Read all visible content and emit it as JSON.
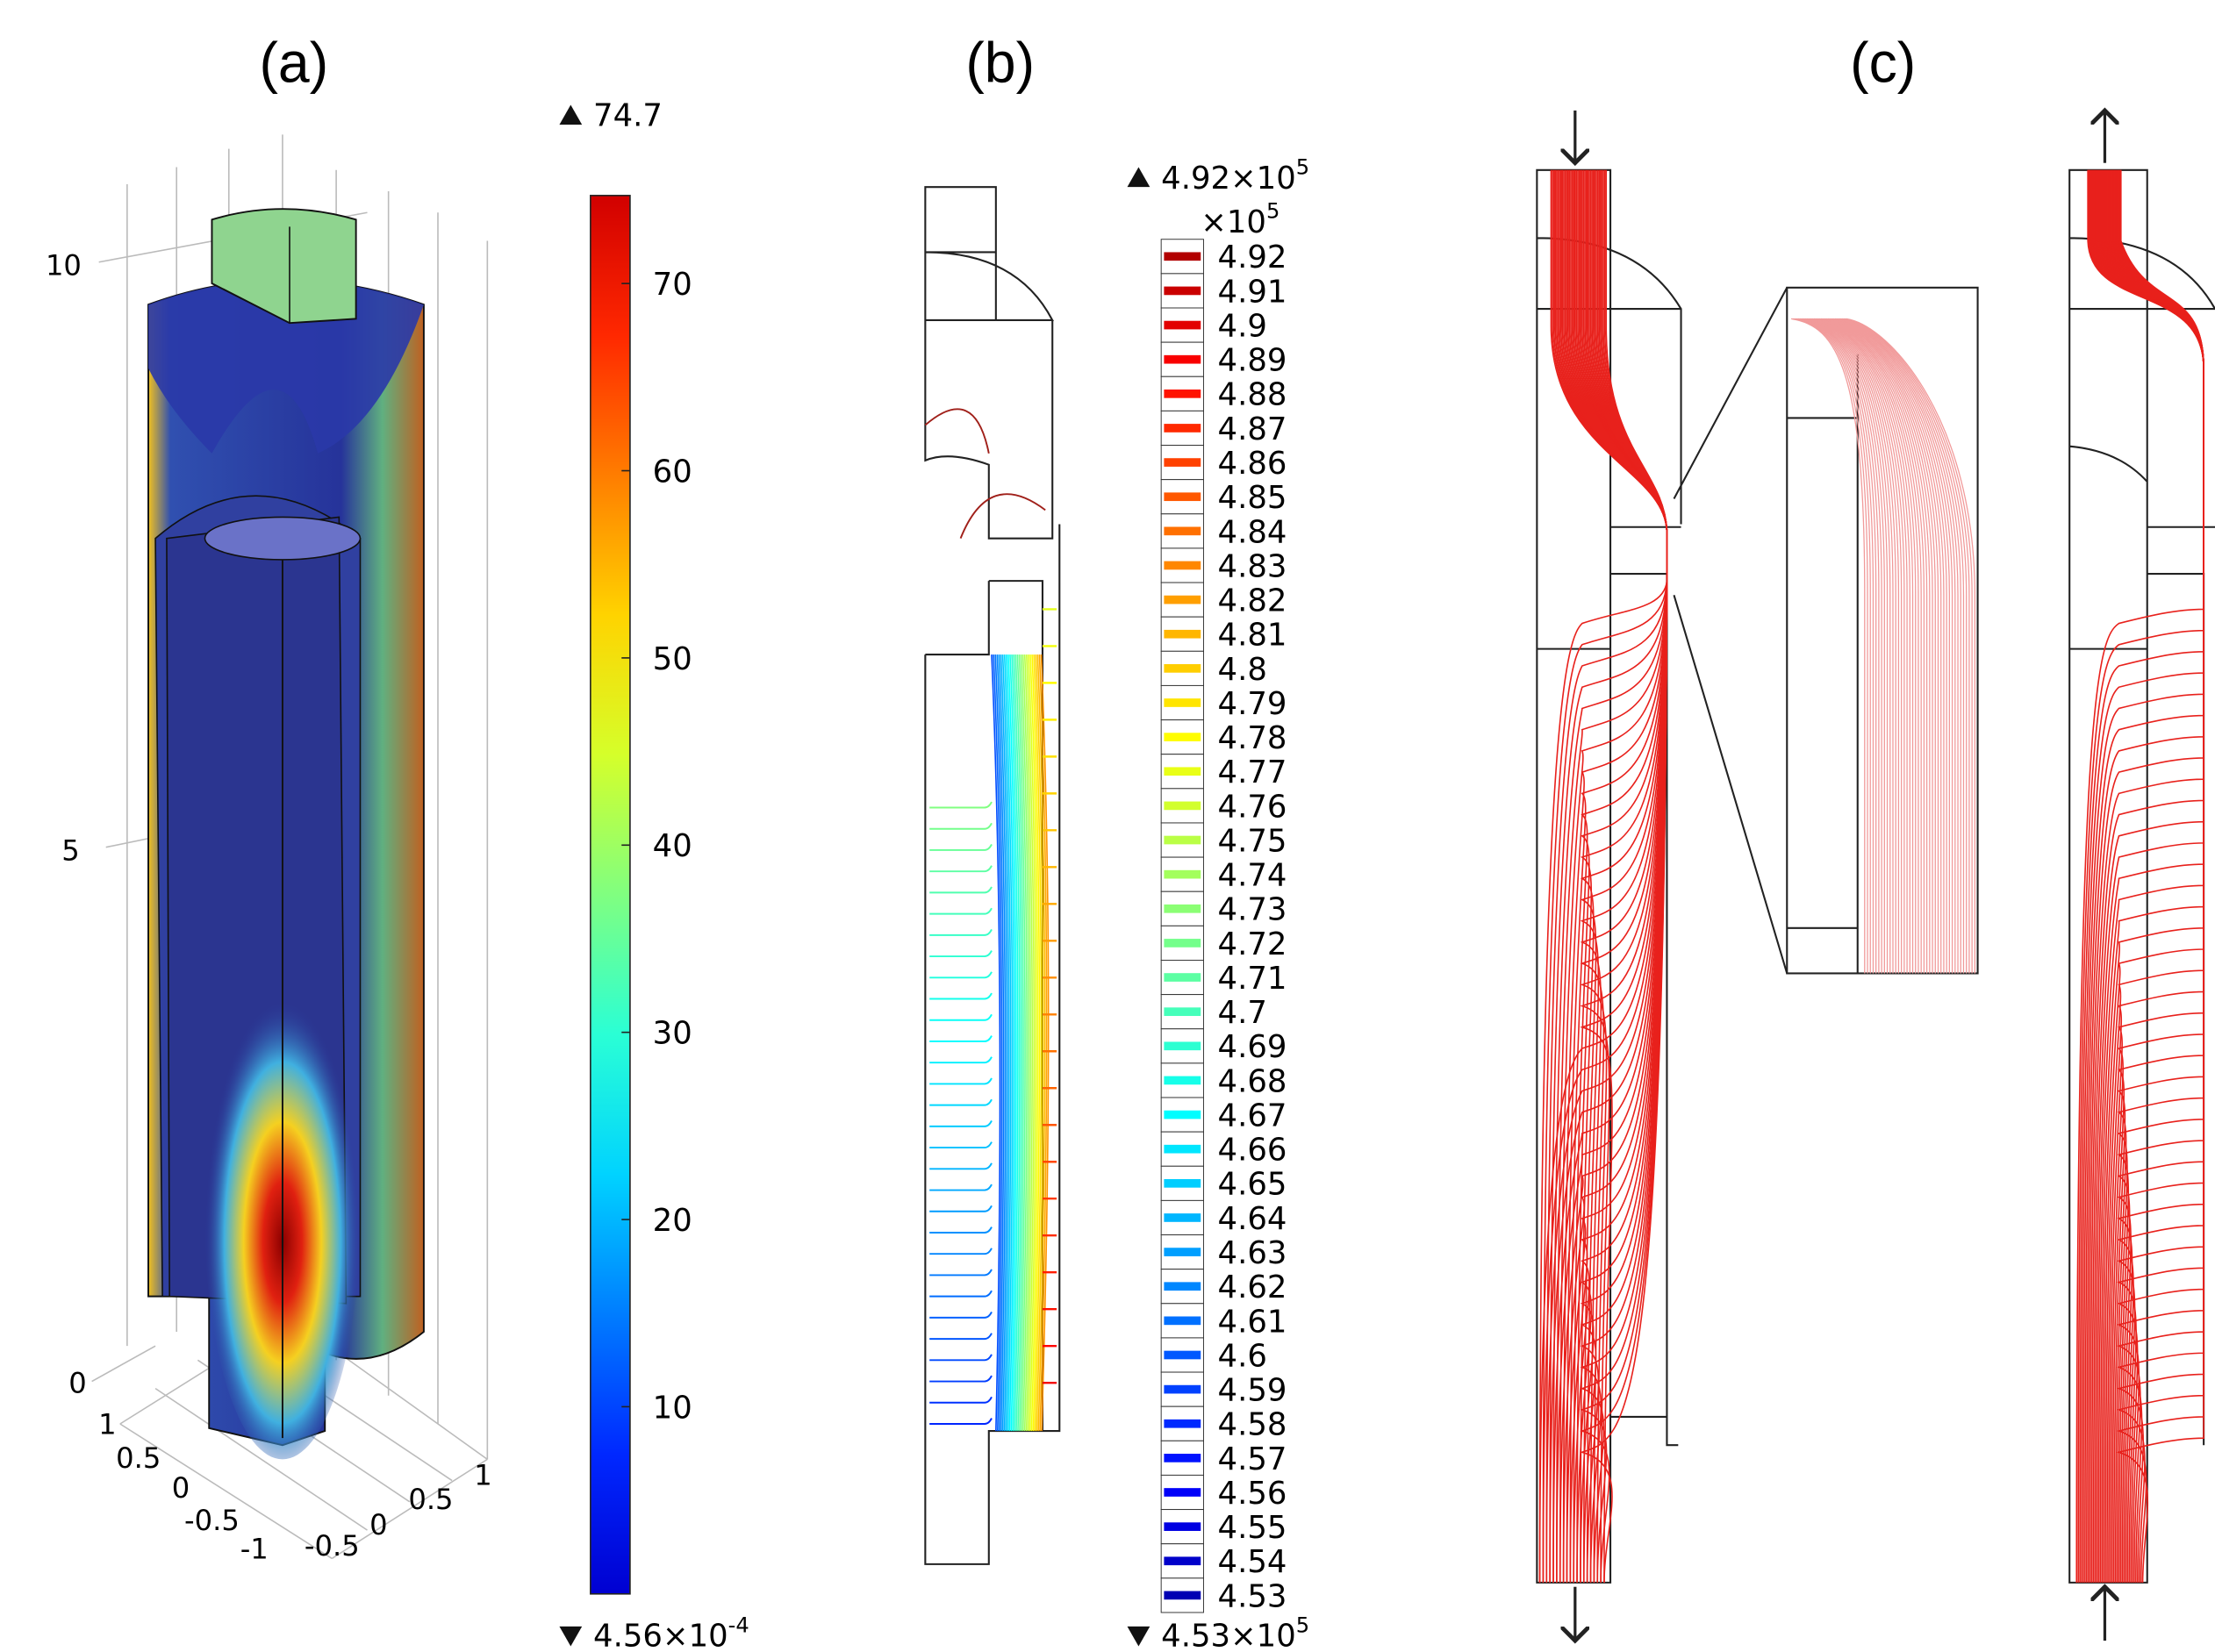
{
  "panels": {
    "a": "(a)",
    "b": "(b)",
    "c": "(c)"
  },
  "panel_a": {
    "colorbar": {
      "min": 0.000456,
      "max": 74.7,
      "ticks": [
        10,
        20,
        30,
        40,
        50,
        60,
        70
      ],
      "max_label": "74.7",
      "min_label": {
        "base": "4.56×10",
        "exp": "-4"
      }
    },
    "axes": {
      "z_ticks": [
        "10",
        "5",
        "0"
      ],
      "x_ticks": [
        "1",
        "0.5",
        "0",
        "-0.5",
        "-1"
      ],
      "y_ticks": [
        "-0.5",
        "0",
        "0.5",
        "1"
      ]
    }
  },
  "panel_b": {
    "max_label": {
      "base": "4.92×10",
      "exp": "5"
    },
    "multiplier": {
      "base": "×10",
      "exp": "5"
    },
    "levels": [
      4.92,
      4.91,
      4.9,
      4.89,
      4.88,
      4.87,
      4.86,
      4.85,
      4.84,
      4.83,
      4.82,
      4.81,
      4.8,
      4.79,
      4.78,
      4.77,
      4.76,
      4.75,
      4.74,
      4.73,
      4.72,
      4.71,
      4.7,
      4.69,
      4.68,
      4.67,
      4.66,
      4.65,
      4.64,
      4.63,
      4.62,
      4.61,
      4.6,
      4.59,
      4.58,
      4.57,
      4.56,
      4.55,
      4.54,
      4.53
    ],
    "min_label": {
      "base": "4.53×10",
      "exp": "5"
    }
  }
}
